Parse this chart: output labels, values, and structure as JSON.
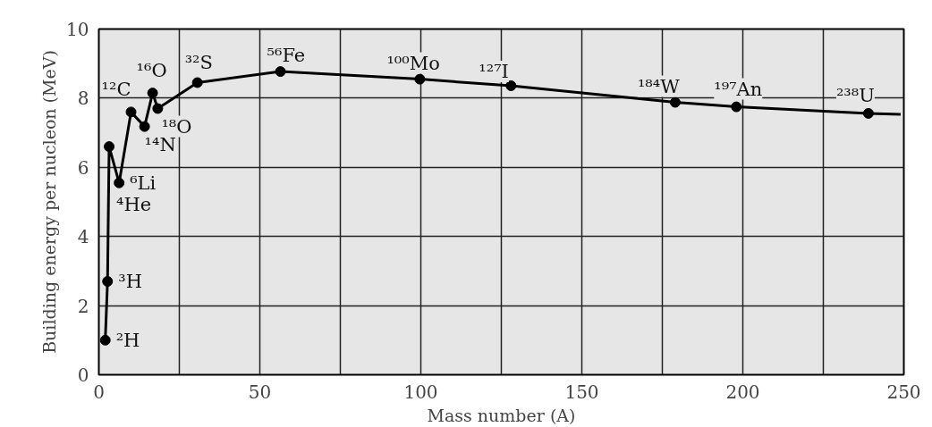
{
  "chart_data": {
    "type": "line",
    "xlabel": "Mass number (A)",
    "ylabel": "Building energy per nucleon (MeV)",
    "series": [
      {
        "color": "#000000",
        "marker": "none",
        "x": [
          2,
          2.7,
          3.2,
          6.3,
          10,
          14.2,
          16.7,
          18.3,
          30.6,
          56.4,
          99.7,
          128,
          179,
          198,
          239,
          249
        ],
        "values": [
          1.0,
          2.7,
          6.6,
          5.55,
          7.6,
          7.18,
          8.15,
          7.7,
          8.45,
          8.77,
          8.55,
          8.36,
          7.88,
          7.75,
          7.56,
          7.53
        ]
      },
      {
        "type": "scatter",
        "color": "#000000",
        "marker": "circle",
        "x": [
          2,
          2.7,
          3.2,
          6.3,
          10,
          14.2,
          16.7,
          18.3,
          30.6,
          56.4,
          99.7,
          128,
          179,
          198,
          239
        ],
        "values": [
          1.0,
          2.7,
          6.6,
          5.55,
          7.6,
          7.18,
          8.15,
          7.7,
          8.45,
          8.77,
          8.55,
          8.36,
          7.88,
          7.75,
          7.56
        ]
      }
    ],
    "annotations": [
      {
        "text": "²H",
        "x": 2,
        "y": 1.0
      },
      {
        "text": "³H",
        "x": 2.7,
        "y": 2.7
      },
      {
        "text": "⁴He",
        "x": 3.2,
        "y": 6.6
      },
      {
        "text": "⁶Li",
        "x": 6.3,
        "y": 5.55
      },
      {
        "text": "¹²C",
        "x": 10,
        "y": 7.6
      },
      {
        "text": "¹⁴N",
        "x": 14.2,
        "y": 7.18
      },
      {
        "text": "¹⁶O",
        "x": 16.7,
        "y": 8.15
      },
      {
        "text": "¹⁸O",
        "x": 18.3,
        "y": 7.7
      },
      {
        "text": "³²S",
        "x": 30.6,
        "y": 8.45
      },
      {
        "text": "⁵⁶Fe",
        "x": 56.4,
        "y": 8.77
      },
      {
        "text": "¹⁰⁰Mo",
        "x": 99.7,
        "y": 8.55
      },
      {
        "text": "¹²⁷I",
        "x": 128,
        "y": 8.36
      },
      {
        "text": "¹⁸⁴W",
        "x": 179,
        "y": 7.88
      },
      {
        "text": "¹⁹⁷An",
        "x": 198,
        "y": 7.75
      },
      {
        "text": "²³⁸U",
        "x": 239,
        "y": 7.56
      }
    ],
    "xlim": [
      0,
      250
    ],
    "xticks": [
      0,
      {
        "value": 25,
        "label": null
      },
      50,
      {
        "value": 75,
        "label": null
      },
      100,
      {
        "value": 125,
        "label": null
      },
      150,
      {
        "value": 175,
        "label": null
      },
      200,
      {
        "value": 225,
        "label": null
      },
      250
    ],
    "ylim": [
      0,
      10
    ],
    "yticks": [
      0,
      2,
      4,
      6,
      8,
      10
    ],
    "grid": true
  }
}
